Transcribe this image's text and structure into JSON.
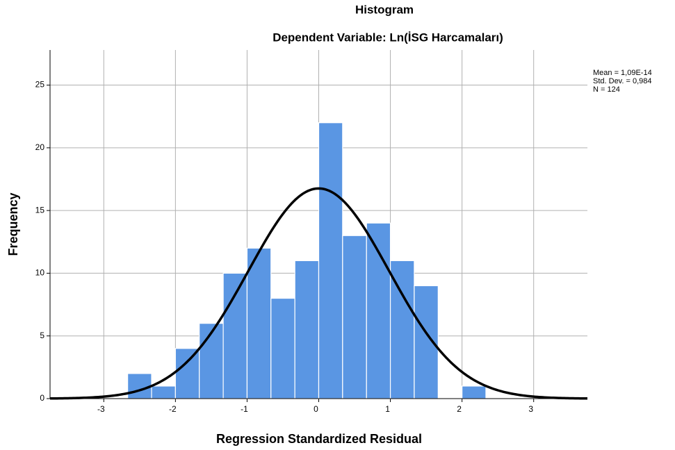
{
  "chart_data": {
    "type": "histogram",
    "title": "Histogram",
    "subtitle": "Dependent Variable: Ln(İSG Harcamaları)",
    "x_label": "Regression Standardized Residual",
    "y_label": "Frequency",
    "bins": [
      -2.667,
      -2.333,
      -2,
      -1.667,
      -1.333,
      -1,
      -0.667,
      -0.333,
      0,
      0.333,
      0.667,
      1,
      1.333,
      1.667,
      2,
      2.333
    ],
    "values": [
      2,
      1,
      4,
      6,
      10,
      12,
      8,
      11,
      22,
      13,
      14,
      11,
      9,
      0,
      1
    ],
    "color": "#5a96e3",
    "curve_color": "#000000",
    "stats": [
      {
        "value": 1.09e-14,
        "label": "Mean = 1,09E-14"
      },
      {
        "value": 0.984,
        "label": "Std. Dev. = 0,984"
      },
      {
        "value": 124,
        "label": "N = 124"
      }
    ],
    "xlim": [
      -3.75,
      3.75
    ],
    "ylim": [
      0,
      27.8
    ],
    "xticks": [
      -3,
      -2,
      -1,
      0,
      1,
      2,
      3
    ],
    "yticks": [
      0,
      5,
      10,
      15,
      20,
      25
    ],
    "grid": true
  }
}
